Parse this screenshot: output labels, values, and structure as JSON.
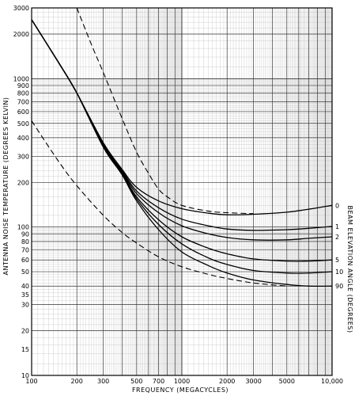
{
  "chart_data": {
    "type": "line",
    "title": "",
    "xlabel": "FREQUENCY  (MEGACYCLES)",
    "ylabel": "ANTENNA NOISE TEMPERATURE (DEGREES KELVIN)",
    "right_label": "BEAM ELEVATION ANGLE (DEGREES)",
    "x_scale": "log",
    "y_scale": "log",
    "xlim": [
      100,
      10000
    ],
    "ylim": [
      10,
      3000
    ],
    "grid": true,
    "x_ticks": [
      {
        "v": 100,
        "label": "100"
      },
      {
        "v": 200,
        "label": "200"
      },
      {
        "v": 300,
        "label": "300"
      },
      {
        "v": 500,
        "label": "500"
      },
      {
        "v": 700,
        "label": "700"
      },
      {
        "v": 1000,
        "label": "1000"
      },
      {
        "v": 2000,
        "label": "2000"
      },
      {
        "v": 3000,
        "label": "3000"
      },
      {
        "v": 5000,
        "label": "5000"
      },
      {
        "v": 10000,
        "label": "10,000"
      }
    ],
    "y_ticks": [
      {
        "v": 3000,
        "label": "3000"
      },
      {
        "v": 2000,
        "label": "2000"
      },
      {
        "v": 1000,
        "label": "1000"
      },
      {
        "v": 900,
        "label": "900"
      },
      {
        "v": 800,
        "label": "800"
      },
      {
        "v": 700,
        "label": "700"
      },
      {
        "v": 600,
        "label": "600"
      },
      {
        "v": 500,
        "label": "500"
      },
      {
        "v": 400,
        "label": "400"
      },
      {
        "v": 300,
        "label": "300"
      },
      {
        "v": 200,
        "label": "200"
      },
      {
        "v": 100,
        "label": "100"
      },
      {
        "v": 90,
        "label": "90"
      },
      {
        "v": 80,
        "label": "80"
      },
      {
        "v": 70,
        "label": "70"
      },
      {
        "v": 60,
        "label": "60"
      },
      {
        "v": 50,
        "label": "50"
      },
      {
        "v": 40,
        "label": "40"
      },
      {
        "v": 35,
        "label": "35"
      },
      {
        "v": 30,
        "label": "30"
      },
      {
        "v": 20,
        "label": "20"
      },
      {
        "v": 15,
        "label": "15"
      },
      {
        "v": 10,
        "label": "10"
      }
    ],
    "series": [
      {
        "name": "0",
        "style": "solid",
        "x": [
          100,
          150,
          200,
          300,
          400,
          500,
          700,
          1000,
          1500,
          2000,
          3000,
          5000,
          7000,
          10000
        ],
        "y": [
          2500,
          1300,
          800,
          370,
          245,
          185,
          150,
          133,
          124,
          121,
          122,
          126,
          132,
          140
        ]
      },
      {
        "name": "1",
        "style": "solid",
        "x": [
          100,
          150,
          200,
          300,
          400,
          500,
          700,
          1000,
          1500,
          2000,
          3000,
          5000,
          7000,
          10000
        ],
        "y": [
          2500,
          1300,
          800,
          360,
          240,
          175,
          135,
          113,
          102,
          97,
          95,
          96,
          98,
          101
        ]
      },
      {
        "name": "2",
        "style": "solid",
        "x": [
          100,
          150,
          200,
          300,
          400,
          500,
          700,
          1000,
          1500,
          2000,
          3000,
          5000,
          7000,
          10000
        ],
        "y": [
          2500,
          1300,
          800,
          355,
          235,
          168,
          125,
          102,
          90,
          85,
          82,
          82,
          84,
          86
        ]
      },
      {
        "name": "5",
        "style": "solid",
        "x": [
          100,
          150,
          200,
          300,
          400,
          500,
          700,
          1000,
          1500,
          2000,
          3000,
          5000,
          7000,
          10000
        ],
        "y": [
          2500,
          1300,
          800,
          350,
          230,
          160,
          112,
          86,
          72,
          66,
          61,
          59,
          59,
          60
        ]
      },
      {
        "name": "10",
        "style": "solid",
        "x": [
          100,
          150,
          200,
          300,
          400,
          500,
          700,
          1000,
          1500,
          2000,
          3000,
          5000,
          7000,
          10000
        ],
        "y": [
          2500,
          1300,
          800,
          348,
          227,
          155,
          104,
          77,
          62,
          56,
          51,
          49,
          49,
          50
        ]
      },
      {
        "name": "90",
        "style": "solid",
        "x": [
          100,
          150,
          200,
          300,
          400,
          500,
          700,
          1000,
          1500,
          2000,
          3000,
          5000,
          7000,
          10000
        ],
        "y": [
          2500,
          1300,
          800,
          345,
          225,
          150,
          96,
          68,
          55,
          49,
          44,
          41,
          40,
          40
        ]
      },
      {
        "name": "",
        "style": "dashed",
        "x": [
          200,
          250,
          300,
          400,
          500,
          600,
          700,
          800,
          1000,
          1500,
          2000,
          3000
        ],
        "y": [
          3000,
          1700,
          1100,
          540,
          320,
          230,
          180,
          160,
          140,
          128,
          125,
          123
        ]
      },
      {
        "name": "",
        "style": "dashed",
        "x": [
          100,
          150,
          200,
          300,
          400,
          500,
          700,
          1000,
          1500,
          2000,
          3000,
          5000
        ],
        "y": [
          520,
          280,
          190,
          120,
          92,
          78,
          63,
          54,
          48,
          45,
          42,
          40
        ]
      }
    ]
  }
}
